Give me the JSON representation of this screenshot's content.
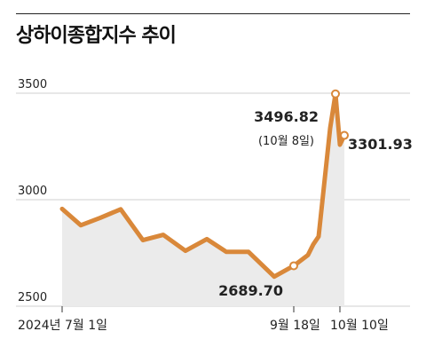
{
  "chart_data": {
    "type": "area",
    "title": "상하이종합지수 추이",
    "colors": {
      "line": "#d9883a",
      "area": "#ebebeb",
      "grid": "#cfcfcf",
      "text": "#222222"
    },
    "ylim": [
      2500,
      3500
    ],
    "y_ticks": [
      "3500",
      "3000",
      "2500"
    ],
    "x_tick_labels": [
      "2024년 7월 1일",
      "9월 18일",
      "10월 10일"
    ],
    "grid": true,
    "series": [
      {
        "values": [
          2957,
          2880,
          2915,
          2955,
          2810,
          2835,
          2760,
          2815,
          2755,
          2755,
          2639,
          2689.7,
          2740,
          2790,
          2827,
          3336,
          3496.82,
          3258,
          3301.93
        ]
      }
    ],
    "annotations": [
      {
        "value": "3496.82",
        "note": "(10월 8일)"
      },
      {
        "value": "2689.70"
      },
      {
        "value": "3301.93"
      }
    ]
  }
}
